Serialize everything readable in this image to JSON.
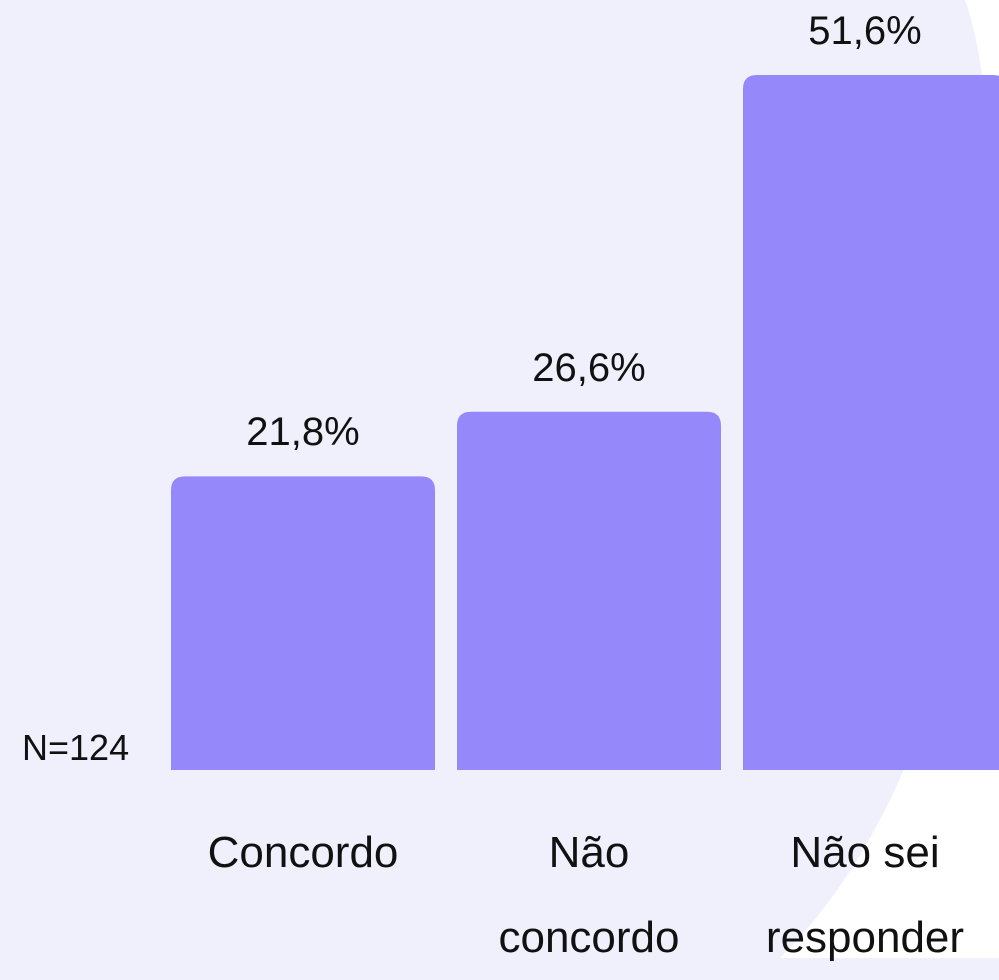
{
  "chart_data": {
    "type": "bar",
    "categories": [
      "Concordo",
      "Não concordo",
      "Não sei responder"
    ],
    "values": [
      21.8,
      26.6,
      51.6
    ],
    "value_labels": [
      "21,8%",
      "26,6%",
      "51,6%"
    ],
    "color": "#9488fa",
    "annotation": "N=124"
  }
}
